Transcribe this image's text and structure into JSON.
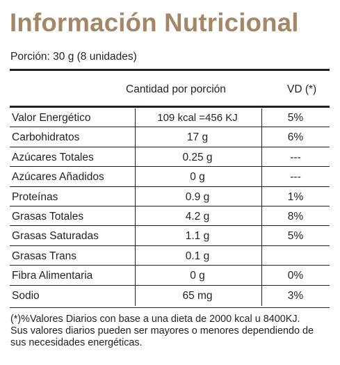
{
  "title": "Información Nutricional",
  "portion": "Porción: 30 g (8 unidades)",
  "table": {
    "headers": {
      "amount": "Cantidad por porción",
      "dv": "VD (*)"
    },
    "rows": [
      {
        "name": "Valor Energético",
        "amount": "109 kcal =456 KJ",
        "dv": "5%"
      },
      {
        "name": "Carbohidratos",
        "amount": "17 g",
        "dv": "6%"
      },
      {
        "name": "Azúcares Totales",
        "amount": "0.25 g",
        "dv": "---"
      },
      {
        "name": "Azúcares Añadidos",
        "amount": "0 g",
        "dv": "---"
      },
      {
        "name": "Proteínas",
        "amount": "0.9 g",
        "dv": "1%"
      },
      {
        "name": "Grasas Totales",
        "amount": "4.2 g",
        "dv": "8%"
      },
      {
        "name": "Grasas Saturadas",
        "amount": "1.1 g",
        "dv": "5%"
      },
      {
        "name": "Grasas Trans",
        "amount": "0.1 g",
        "dv": ""
      },
      {
        "name": "Fibra Alimentaria",
        "amount": "0 g",
        "dv": "0%"
      },
      {
        "name": "Sodio",
        "amount": "65 mg",
        "dv": "3%"
      }
    ]
  },
  "footnote": {
    "line1": "(*)%Valores Diarios con base a una dieta de 2000 kcal u 8400KJ.",
    "line2": "Sus valores diarios pueden ser mayores o menores dependiendo de",
    "line3": "sus necesidades energéticas."
  },
  "colors": {
    "title": "#a48766",
    "text": "#231f20"
  }
}
